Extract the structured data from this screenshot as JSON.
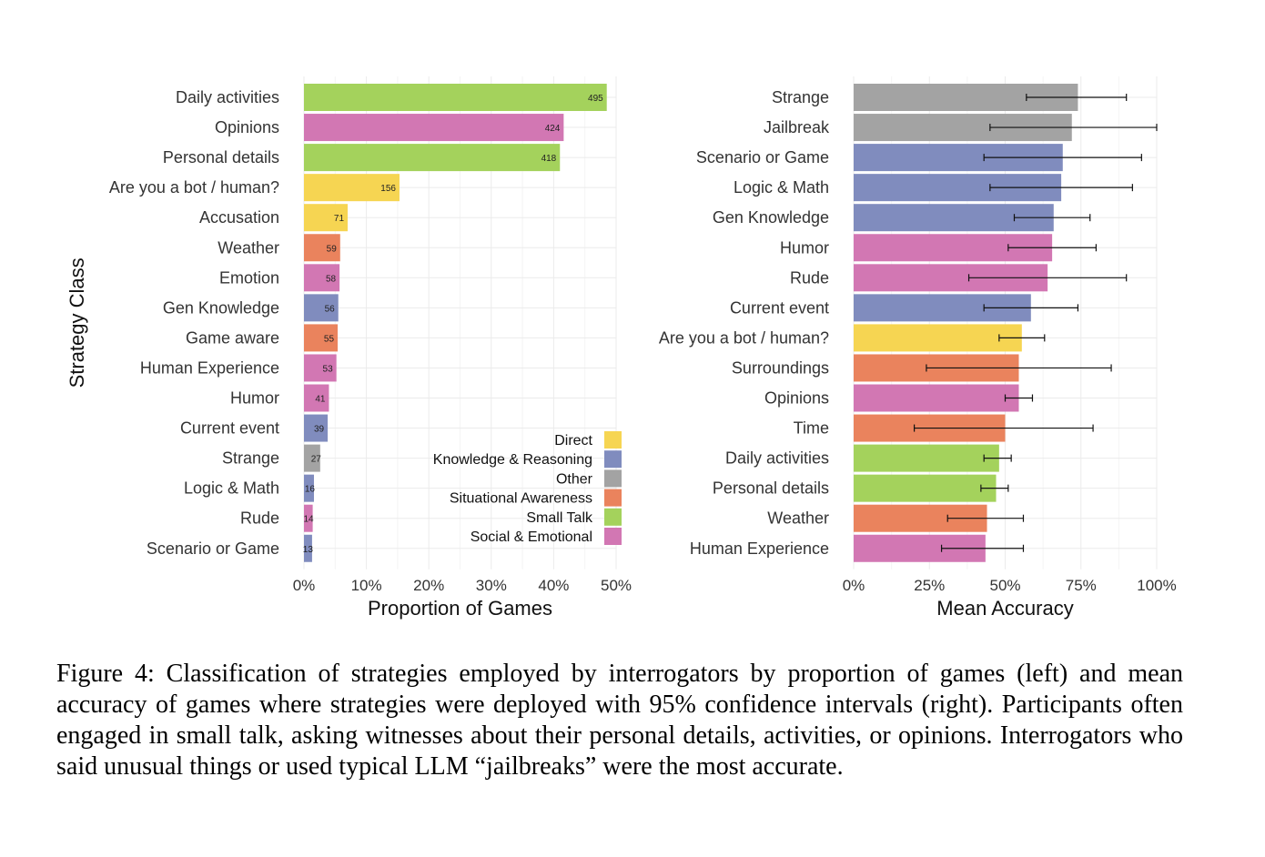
{
  "chart_data": [
    {
      "type": "bar",
      "orientation": "horizontal",
      "ylabel": "Strategy Class",
      "xlabel": "Proportion of Games",
      "xlim": [
        0,
        0.5
      ],
      "xticks": [
        "0%",
        "10%",
        "20%",
        "30%",
        "40%",
        "50%"
      ],
      "grid": true,
      "legend": {
        "placement": "bottom-right",
        "entries": [
          {
            "name": "Direct",
            "color": "#f6d552"
          },
          {
            "name": "Knowledge & Reasoning",
            "color": "#808cbe"
          },
          {
            "name": "Other",
            "color": "#a3a3a3"
          },
          {
            "name": "Situational Awareness",
            "color": "#ea835d"
          },
          {
            "name": "Small Talk",
            "color": "#a4d25c"
          },
          {
            "name": "Social & Emotional",
            "color": "#d277b3"
          }
        ]
      },
      "bars": [
        {
          "category": "Daily activities",
          "value": 0.485,
          "count": "495",
          "group": "Small Talk"
        },
        {
          "category": "Opinions",
          "value": 0.416,
          "count": "424",
          "group": "Social & Emotional"
        },
        {
          "category": "Personal details",
          "value": 0.41,
          "count": "418",
          "group": "Small Talk"
        },
        {
          "category": "Are you a bot / human?",
          "value": 0.153,
          "count": "156",
          "group": "Direct"
        },
        {
          "category": "Accusation",
          "value": 0.07,
          "count": "71",
          "group": "Direct"
        },
        {
          "category": "Weather",
          "value": 0.058,
          "count": "59",
          "group": "Situational Awareness"
        },
        {
          "category": "Emotion",
          "value": 0.057,
          "count": "58",
          "group": "Social & Emotional"
        },
        {
          "category": "Gen Knowledge",
          "value": 0.055,
          "count": "56",
          "group": "Knowledge & Reasoning"
        },
        {
          "category": "Game aware",
          "value": 0.054,
          "count": "55",
          "group": "Situational Awareness"
        },
        {
          "category": "Human Experience",
          "value": 0.052,
          "count": "53",
          "group": "Social & Emotional"
        },
        {
          "category": "Humor",
          "value": 0.04,
          "count": "41",
          "group": "Social & Emotional"
        },
        {
          "category": "Current event",
          "value": 0.038,
          "count": "39",
          "group": "Knowledge & Reasoning"
        },
        {
          "category": "Strange",
          "value": 0.026,
          "count": "27",
          "group": "Other"
        },
        {
          "category": "Logic & Math",
          "value": 0.016,
          "count": "16",
          "group": "Knowledge & Reasoning"
        },
        {
          "category": "Rude",
          "value": 0.014,
          "count": "14",
          "group": "Social & Emotional"
        },
        {
          "category": "Scenario or Game",
          "value": 0.013,
          "count": "13",
          "group": "Knowledge & Reasoning"
        }
      ]
    },
    {
      "type": "bar",
      "orientation": "horizontal",
      "xlabel": "Mean Accuracy",
      "xlim": [
        0,
        1
      ],
      "xticks": [
        "0%",
        "25%",
        "50%",
        "75%",
        "100%"
      ],
      "grid": true,
      "error_bars": "95% confidence intervals",
      "bars": [
        {
          "category": "Strange",
          "value": 0.74,
          "ci": [
            0.57,
            0.9
          ],
          "group": "Other"
        },
        {
          "category": "Jailbreak",
          "value": 0.72,
          "ci": [
            0.45,
            1.0
          ],
          "group": "Other"
        },
        {
          "category": "Scenario or Game",
          "value": 0.69,
          "ci": [
            0.43,
            0.95
          ],
          "group": "Knowledge & Reasoning"
        },
        {
          "category": "Logic & Math",
          "value": 0.685,
          "ci": [
            0.45,
            0.92
          ],
          "group": "Knowledge & Reasoning"
        },
        {
          "category": "Gen Knowledge",
          "value": 0.66,
          "ci": [
            0.53,
            0.78
          ],
          "group": "Knowledge & Reasoning"
        },
        {
          "category": "Humor",
          "value": 0.655,
          "ci": [
            0.51,
            0.8
          ],
          "group": "Social & Emotional"
        },
        {
          "category": "Rude",
          "value": 0.64,
          "ci": [
            0.38,
            0.9
          ],
          "group": "Social & Emotional"
        },
        {
          "category": "Current event",
          "value": 0.585,
          "ci": [
            0.43,
            0.74
          ],
          "group": "Knowledge & Reasoning"
        },
        {
          "category": "Are you a bot / human?",
          "value": 0.555,
          "ci": [
            0.48,
            0.63
          ],
          "group": "Direct"
        },
        {
          "category": "Surroundings",
          "value": 0.545,
          "ci": [
            0.24,
            0.85
          ],
          "group": "Situational Awareness"
        },
        {
          "category": "Opinions",
          "value": 0.545,
          "ci": [
            0.5,
            0.59
          ],
          "group": "Social & Emotional"
        },
        {
          "category": "Time",
          "value": 0.5,
          "ci": [
            0.2,
            0.79
          ],
          "group": "Situational Awareness"
        },
        {
          "category": "Daily activities",
          "value": 0.48,
          "ci": [
            0.43,
            0.52
          ],
          "group": "Small Talk"
        },
        {
          "category": "Personal details",
          "value": 0.47,
          "ci": [
            0.42,
            0.51
          ],
          "group": "Small Talk"
        },
        {
          "category": "Weather",
          "value": 0.44,
          "ci": [
            0.31,
            0.56
          ],
          "group": "Situational Awareness"
        },
        {
          "category": "Human Experience",
          "value": 0.435,
          "ci": [
            0.29,
            0.56
          ],
          "group": "Social & Emotional"
        }
      ]
    }
  ],
  "caption": "Figure 4: Classification of strategies employed by interrogators by proportion of games (left) and mean accuracy of games where strategies were deployed with 95% confidence intervals (right). Participants often engaged in small talk, asking witnesses about their personal details, activities, or opinions. Interrogators who said unusual things or used typical LLM “jailbreaks” were the most accurate."
}
